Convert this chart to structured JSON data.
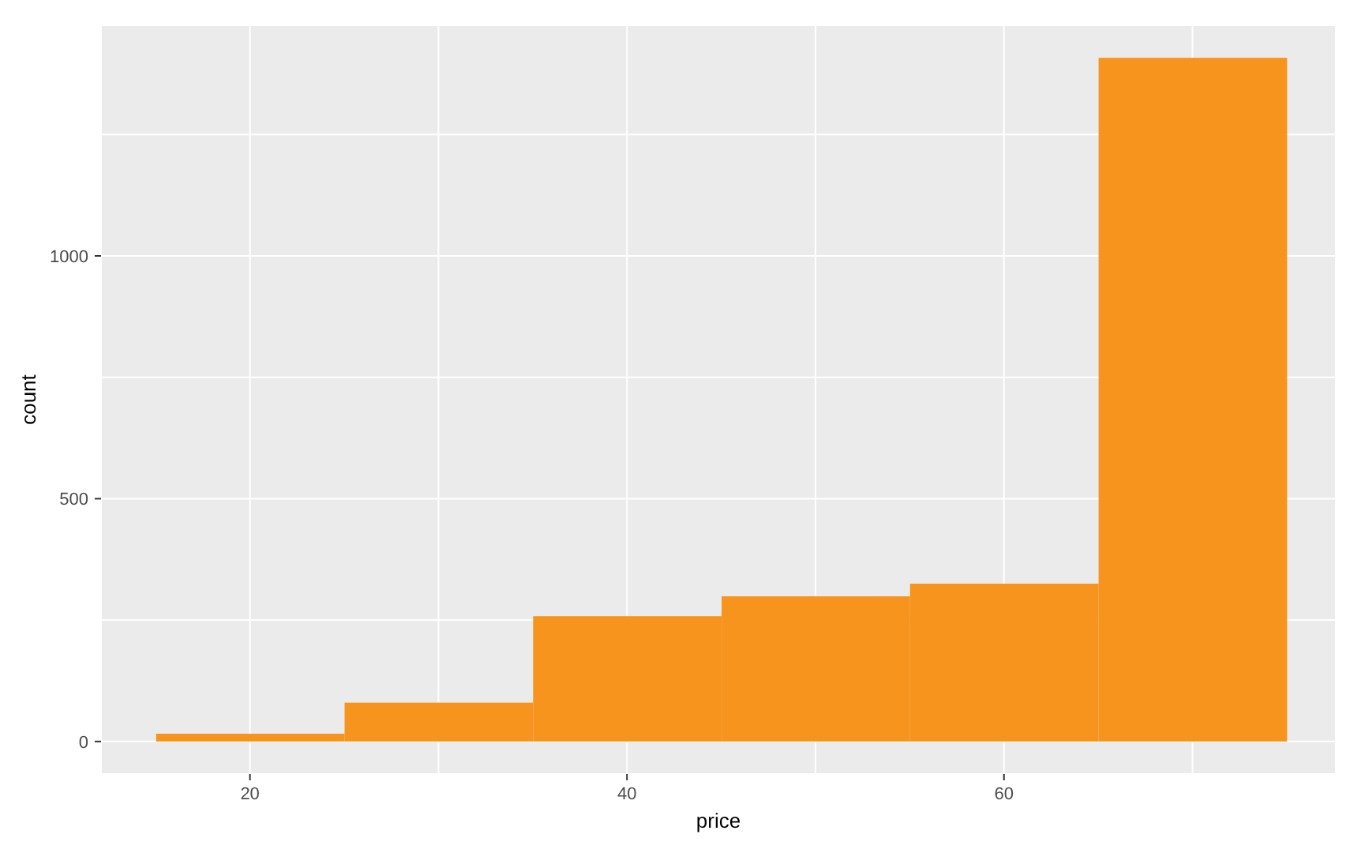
{
  "chart_data": {
    "type": "histogram",
    "xlabel": "price",
    "ylabel": "count",
    "bins": [
      15,
      25,
      35,
      45,
      55,
      65,
      75
    ],
    "values": [
      16,
      80,
      258,
      299,
      325,
      1408
    ],
    "color": "#f7941e",
    "xlim": [
      12.1,
      77.6
    ],
    "ylim": [
      -67,
      1475
    ],
    "xticks": [
      20,
      {
        "value": 30,
        "label": null
      },
      40,
      {
        "value": 50,
        "label": null
      },
      60,
      {
        "value": 70,
        "label": null
      }
    ],
    "yticks": [
      0,
      {
        "value": 250,
        "label": null
      },
      500,
      {
        "value": 750,
        "label": null
      },
      1000,
      {
        "value": 1250,
        "label": null
      }
    ],
    "grid": true
  }
}
